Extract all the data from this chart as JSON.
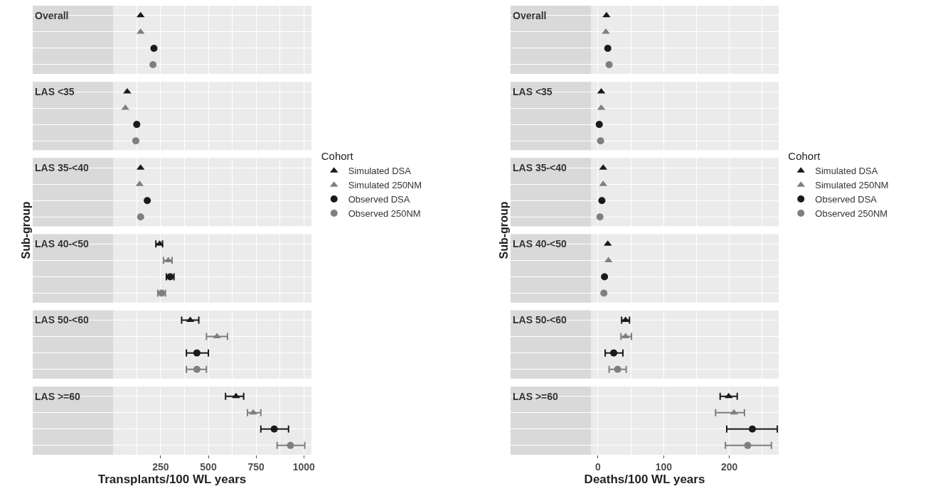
{
  "chart_data": [
    {
      "type": "scatter",
      "orientation": "horizontal",
      "xlabel": "Transplants/100 WL years",
      "ylabel": "Sub-group",
      "legend_title": "Cohort",
      "legend": "right",
      "grid": true,
      "categories": [
        "Overall",
        null,
        null,
        null,
        "LAS <35",
        null,
        null,
        null,
        "LAS 35-<40",
        null,
        null,
        null,
        "LAS 40-<50",
        null,
        null,
        null,
        "LAS 50-<60",
        null,
        null,
        null,
        "LAS >=60",
        null,
        null,
        null
      ],
      "xlim": [
        -420,
        1040
      ],
      "xticks": [
        250,
        500,
        750,
        1000
      ],
      "series": [
        {
          "name": "Simulated DSA",
          "color": "#1a1a1a",
          "marker": "triangle",
          "values": [
            145,
            null,
            null,
            null,
            75,
            null,
            null,
            null,
            145,
            null,
            null,
            null,
            245,
            null,
            null,
            null,
            405,
            null,
            null,
            null,
            645,
            null,
            null,
            null
          ],
          "errors": [
            null,
            null,
            null,
            null,
            null,
            null,
            null,
            null,
            null,
            null,
            null,
            null,
            [
              225,
              260
            ],
            null,
            null,
            null,
            [
              360,
              450
            ],
            null,
            null,
            null,
            [
              590,
              685
            ],
            null,
            null,
            null
          ]
        },
        {
          "name": "Simulated 250NM",
          "color": "#7f7f7f",
          "marker": "triangle",
          "values": [
            null,
            145,
            null,
            null,
            null,
            65,
            null,
            null,
            null,
            140,
            null,
            null,
            null,
            290,
            null,
            null,
            null,
            545,
            null,
            null,
            null,
            735,
            null,
            null
          ],
          "errors": [
            null,
            null,
            null,
            null,
            null,
            null,
            null,
            null,
            null,
            null,
            null,
            null,
            null,
            [
              265,
              310
            ],
            null,
            null,
            null,
            [
              490,
              600
            ],
            null,
            null,
            null,
            [
              705,
              775
            ],
            null,
            null
          ]
        },
        {
          "name": "Observed DSA",
          "color": "#1a1a1a",
          "marker": "circle",
          "values": [
            null,
            null,
            215,
            null,
            null,
            null,
            125,
            null,
            null,
            null,
            180,
            null,
            null,
            null,
            300,
            null,
            null,
            null,
            440,
            null,
            null,
            null,
            845,
            null
          ],
          "errors": [
            null,
            null,
            null,
            null,
            null,
            null,
            null,
            null,
            null,
            null,
            null,
            null,
            null,
            null,
            [
              280,
              320
            ],
            null,
            null,
            null,
            [
              385,
              500
            ],
            null,
            null,
            null,
            [
              775,
              920
            ],
            null
          ]
        },
        {
          "name": "Observed 250NM",
          "color": "#7f7f7f",
          "marker": "circle",
          "values": [
            null,
            null,
            null,
            210,
            null,
            null,
            null,
            120,
            null,
            null,
            null,
            145,
            null,
            null,
            null,
            255,
            null,
            null,
            null,
            440,
            null,
            null,
            null,
            930
          ],
          "errors": [
            null,
            null,
            null,
            null,
            null,
            null,
            null,
            null,
            null,
            null,
            null,
            null,
            null,
            null,
            null,
            [
              235,
              275
            ],
            null,
            null,
            null,
            [
              385,
              490
            ],
            null,
            null,
            null,
            [
              860,
              1005
            ]
          ]
        }
      ]
    },
    {
      "type": "scatter",
      "orientation": "horizontal",
      "xlabel": "Deaths/100 WL years",
      "ylabel": "Sub-group",
      "legend_title": "Cohort",
      "legend": "right",
      "grid": true,
      "categories": [
        "Overall",
        null,
        null,
        null,
        "LAS <35",
        null,
        null,
        null,
        "LAS 35-<40",
        null,
        null,
        null,
        "LAS 40-<50",
        null,
        null,
        null,
        "LAS 50-<60",
        null,
        null,
        null,
        "LAS >=60",
        null,
        null,
        null
      ],
      "xlim": [
        -133,
        275
      ],
      "xticks": [
        0,
        100,
        200
      ],
      "series": [
        {
          "name": "Simulated DSA",
          "color": "#1a1a1a",
          "marker": "triangle",
          "values": [
            13,
            null,
            null,
            null,
            5,
            null,
            null,
            null,
            8,
            null,
            null,
            null,
            15,
            null,
            null,
            null,
            42,
            null,
            null,
            null,
            199,
            null,
            null,
            null
          ],
          "errors": [
            null,
            null,
            null,
            null,
            null,
            null,
            null,
            null,
            null,
            null,
            null,
            null,
            null,
            null,
            null,
            null,
            [
              36,
              48
            ],
            null,
            null,
            null,
            [
              186,
              212
            ],
            null,
            null,
            null
          ]
        },
        {
          "name": "Simulated 250NM",
          "color": "#7f7f7f",
          "marker": "triangle",
          "values": [
            null,
            12,
            null,
            null,
            null,
            5,
            null,
            null,
            null,
            8,
            null,
            null,
            null,
            16,
            null,
            null,
            null,
            42,
            null,
            null,
            null,
            207,
            null,
            null
          ],
          "errors": [
            null,
            null,
            null,
            null,
            null,
            null,
            null,
            null,
            null,
            null,
            null,
            null,
            null,
            null,
            null,
            null,
            null,
            [
              35,
              51
            ],
            null,
            null,
            null,
            [
              179,
              223
            ],
            null,
            null
          ]
        },
        {
          "name": "Observed DSA",
          "color": "#1a1a1a",
          "marker": "circle",
          "values": [
            null,
            null,
            15,
            null,
            null,
            null,
            2,
            null,
            null,
            null,
            6,
            null,
            null,
            null,
            10,
            null,
            null,
            null,
            24,
            null,
            null,
            null,
            235,
            null
          ],
          "errors": [
            null,
            null,
            null,
            null,
            null,
            null,
            null,
            null,
            null,
            null,
            null,
            null,
            null,
            null,
            null,
            null,
            null,
            null,
            [
              11,
              38
            ],
            null,
            null,
            null,
            [
              196,
              273
            ],
            null
          ]
        },
        {
          "name": "Observed 250NM",
          "color": "#7f7f7f",
          "marker": "circle",
          "values": [
            null,
            null,
            null,
            17,
            null,
            null,
            null,
            4,
            null,
            null,
            null,
            3,
            null,
            null,
            null,
            9,
            null,
            null,
            null,
            30,
            null,
            null,
            null,
            228
          ],
          "errors": [
            null,
            null,
            null,
            null,
            null,
            null,
            null,
            null,
            null,
            null,
            null,
            null,
            null,
            null,
            null,
            null,
            null,
            null,
            null,
            [
              17,
              43
            ],
            null,
            null,
            null,
            [
              194,
              264
            ]
          ]
        }
      ]
    }
  ]
}
